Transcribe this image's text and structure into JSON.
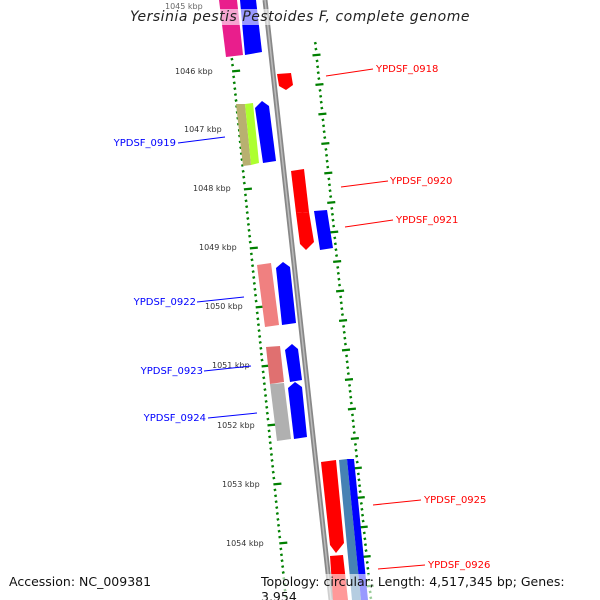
{
  "title": "Yersinia pestis Pestoides F, complete genome",
  "accession": "Accession: NC_009381",
  "summary": "Topology: circular; Length: 4,517,345 bp; Genes: 3,954",
  "ticks": [
    "1045 kbp",
    "1046 kbp",
    "1047 kbp",
    "1048 kbp",
    "1049 kbp",
    "1050 kbp",
    "1051 kbp",
    "1052 kbp",
    "1053 kbp",
    "1054 kbp"
  ],
  "genes_right": [
    "YPDSF_0918",
    "YPDSF_0920",
    "YPDSF_0921",
    "YPDSF_0925",
    "YPDSF_0926"
  ],
  "genes_left": [
    "YPDSF_0919",
    "YPDSF_0922",
    "YPDSF_0923",
    "YPDSF_0924"
  ],
  "colors": {
    "forward": "#0000ff",
    "reverse": "#ff0000",
    "tick": "#008000",
    "backbone": "#888888"
  }
}
